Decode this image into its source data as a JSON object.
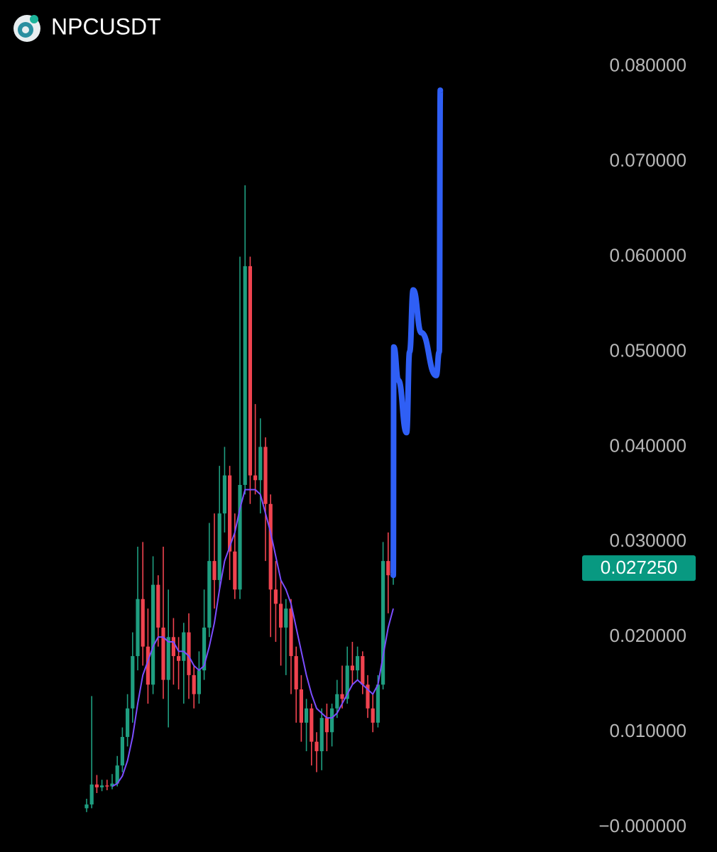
{
  "chart_data": {
    "type": "candlestick",
    "title": "NPCUSDT",
    "ylim": [
      -0.002,
      0.084
    ],
    "yticks": [
      {
        "value": 0.08,
        "label": "0.080000"
      },
      {
        "value": 0.07,
        "label": "0.070000"
      },
      {
        "value": 0.06,
        "label": "0.060000"
      },
      {
        "value": 0.05,
        "label": "0.050000"
      },
      {
        "value": 0.04,
        "label": "0.040000"
      },
      {
        "value": 0.03,
        "label": "0.030000"
      },
      {
        "value": 0.02,
        "label": "0.020000"
      },
      {
        "value": 0.01,
        "label": "0.010000"
      },
      {
        "value": 0,
        "label": "−0.000000"
      }
    ],
    "up_color": "#1f9e80",
    "down_color": "#f0434f",
    "open": [
      0.002,
      0.0024,
      0.0045,
      0.0042,
      0.0044,
      0.0043,
      0.0046,
      0.0065,
      0.0095,
      0.0125,
      0.018,
      0.024,
      0.019,
      0.015,
      0.0255,
      0.021,
      0.0155,
      0.02,
      0.018,
      0.0175,
      0.0205,
      0.016,
      0.014,
      0.0165,
      0.021,
      0.028,
      0.026,
      0.033,
      0.037,
      0.029,
      0.025,
      0.036,
      0.059,
      0.037,
      0.0365,
      0.04,
      0.034,
      0.025,
      0.0235,
      0.021,
      0.023,
      0.018,
      0.0145,
      0.011,
      0.0125,
      0.009,
      0.008,
      0.0115,
      0.01,
      0.0125,
      0.014,
      0.0135,
      0.017,
      0.0165,
      0.018,
      0.015,
      0.0125,
      0.011,
      0.015,
      0.028,
      0.0265
    ],
    "high": [
      0.003,
      0.0138,
      0.0055,
      0.005,
      0.005,
      0.0056,
      0.0075,
      0.0105,
      0.014,
      0.0205,
      0.0295,
      0.03,
      0.023,
      0.0285,
      0.0265,
      0.0295,
      0.025,
      0.022,
      0.02,
      0.0215,
      0.0225,
      0.017,
      0.0185,
      0.025,
      0.032,
      0.033,
      0.038,
      0.04,
      0.038,
      0.033,
      0.06,
      0.0675,
      0.06,
      0.0445,
      0.043,
      0.041,
      0.035,
      0.028,
      0.026,
      0.024,
      0.024,
      0.019,
      0.016,
      0.0135,
      0.013,
      0.01,
      0.0125,
      0.013,
      0.013,
      0.0155,
      0.017,
      0.019,
      0.0195,
      0.019,
      0.0185,
      0.016,
      0.014,
      0.016,
      0.03,
      0.031,
      0.029
    ],
    "low": [
      0.0016,
      0.002,
      0.0036,
      0.0038,
      0.0039,
      0.004,
      0.0043,
      0.0058,
      0.0085,
      0.011,
      0.0165,
      0.017,
      0.013,
      0.014,
      0.019,
      0.0135,
      0.0105,
      0.015,
      0.0145,
      0.013,
      0.0135,
      0.0125,
      0.013,
      0.0155,
      0.02,
      0.023,
      0.025,
      0.031,
      0.026,
      0.024,
      0.024,
      0.035,
      0.034,
      0.035,
      0.033,
      0.028,
      0.02,
      0.0195,
      0.017,
      0.016,
      0.014,
      0.011,
      0.009,
      0.008,
      0.0065,
      0.0058,
      0.006,
      0.008,
      0.0085,
      0.0115,
      0.0125,
      0.013,
      0.015,
      0.0155,
      0.014,
      0.0115,
      0.01,
      0.0105,
      0.0145,
      0.0225,
      0.0255
    ],
    "close": [
      0.0024,
      0.0045,
      0.0042,
      0.0044,
      0.0043,
      0.0046,
      0.0065,
      0.0095,
      0.0125,
      0.018,
      0.024,
      0.019,
      0.015,
      0.0255,
      0.021,
      0.0155,
      0.02,
      0.018,
      0.0175,
      0.0205,
      0.016,
      0.014,
      0.0165,
      0.021,
      0.028,
      0.026,
      0.033,
      0.037,
      0.029,
      0.025,
      0.036,
      0.059,
      0.037,
      0.0365,
      0.04,
      0.034,
      0.025,
      0.0235,
      0.021,
      0.023,
      0.018,
      0.0145,
      0.011,
      0.0125,
      0.009,
      0.008,
      0.0115,
      0.01,
      0.0125,
      0.014,
      0.0135,
      0.017,
      0.0165,
      0.018,
      0.015,
      0.0125,
      0.011,
      0.015,
      0.028,
      0.0265,
      0.02725
    ],
    "moving_average": {
      "color": "#7b4dff",
      "values": [
        null,
        null,
        null,
        null,
        null,
        0.0043,
        0.0046,
        0.0054,
        0.007,
        0.0095,
        0.013,
        0.016,
        0.0175,
        0.019,
        0.02,
        0.02,
        0.0195,
        0.0195,
        0.0185,
        0.0185,
        0.018,
        0.017,
        0.0165,
        0.017,
        0.019,
        0.0215,
        0.025,
        0.028,
        0.0295,
        0.031,
        0.0335,
        0.0355,
        0.0355,
        0.0355,
        0.035,
        0.033,
        0.031,
        0.0285,
        0.026,
        0.025,
        0.0235,
        0.021,
        0.0185,
        0.016,
        0.014,
        0.0125,
        0.012,
        0.0115,
        0.0115,
        0.012,
        0.013,
        0.014,
        0.015,
        0.0155,
        0.015,
        0.0145,
        0.014,
        0.015,
        0.018,
        0.021,
        0.023
      ]
    },
    "projection": {
      "color": "#2f5ff5",
      "x": [
        60,
        60.1,
        61.0,
        62.6,
        63.2,
        63.9,
        65.5,
        68.4,
        69.0,
        69.2
      ],
      "values": [
        0.0265,
        0.0505,
        0.047,
        0.0415,
        0.05,
        0.0565,
        0.052,
        0.0475,
        0.05,
        0.0775
      ]
    },
    "last_price": {
      "value": 0.02725,
      "label": "0.027250",
      "color": "#089981"
    }
  }
}
